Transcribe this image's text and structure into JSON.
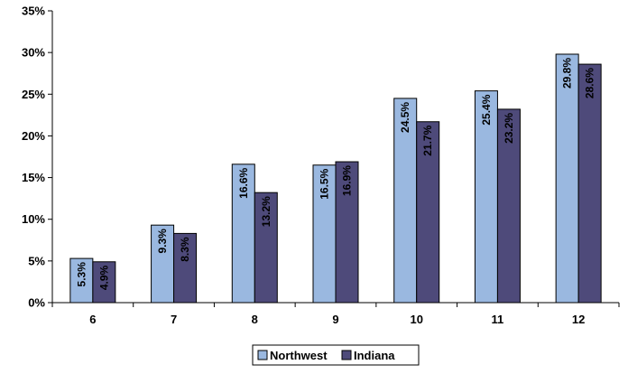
{
  "chart_data": {
    "type": "bar",
    "title": "",
    "xlabel": "",
    "ylabel": "",
    "categories": [
      "6",
      "7",
      "8",
      "9",
      "10",
      "11",
      "12"
    ],
    "series": [
      {
        "name": "Northwest",
        "color": "#9ab8e0",
        "values": [
          5.3,
          9.3,
          16.6,
          16.5,
          24.5,
          25.4,
          29.8
        ],
        "labels": [
          "5.3%",
          "9.3%",
          "16.6%",
          "16.5%",
          "24.5%",
          "25.4%",
          "29.8%"
        ]
      },
      {
        "name": "Indiana",
        "color": "#4e4a7a",
        "values": [
          4.9,
          8.3,
          13.2,
          16.9,
          21.7,
          23.2,
          28.6
        ],
        "labels": [
          "4.9%",
          "8.3%",
          "13.2%",
          "16.9%",
          "21.7%",
          "23.2%",
          "28.6%"
        ]
      }
    ],
    "ylim": [
      0,
      35
    ],
    "yticks": [
      0,
      5,
      10,
      15,
      20,
      25,
      30,
      35
    ],
    "ytick_labels": [
      "0%",
      "5%",
      "10%",
      "15%",
      "20%",
      "25%",
      "30%",
      "35%"
    ],
    "grid": false,
    "legend_position": "bottom",
    "data_labels": "rotated-vertical"
  }
}
